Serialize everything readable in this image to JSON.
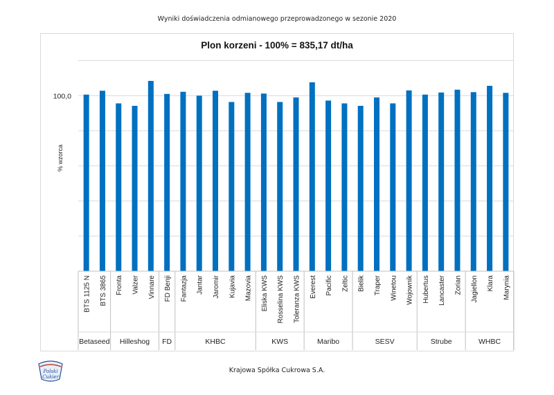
{
  "header": {
    "subtitle": "Wyniki doświadczenia odmianowego przeprowadzonego w sezonie 2020"
  },
  "footer": {
    "company": "Krajowa Spółka Cukrowa S.A."
  },
  "logo": {
    "line1": "Polski",
    "line2": "Cukier"
  },
  "chart_data": {
    "type": "bar",
    "title": "Plon korzeni - 100% = 835,17 dt/ha",
    "ylabel": "% wzorca",
    "yticks": [
      {
        "value": 100,
        "label": "100,0"
      }
    ],
    "ylim": [
      50,
      110.5
    ],
    "grid": true,
    "color": "#0070c0",
    "categories": [
      "BTS 1125 N",
      "BTS 3865",
      "Fronta",
      "Valzer",
      "Vinnare",
      "FD Benji",
      "Fantazja",
      "Jantar",
      "Jaromir",
      "Kujavia",
      "Mazovia",
      "Eliska KWS",
      "Rosselina KWS",
      "Toleranza KWS",
      "Everest",
      "Pacific",
      "Zeltic",
      "Bielik",
      "Traper",
      "Winetou",
      "Wojownik",
      "Hubertus",
      "Lancaster",
      "Zorian",
      "Jagiellon",
      "Klara",
      "Marynia"
    ],
    "values": [
      100.3,
      101.4,
      97.8,
      97.1,
      104.2,
      100.5,
      101.1,
      100.0,
      101.4,
      98.2,
      100.8,
      100.6,
      98.2,
      99.5,
      103.8,
      98.6,
      97.8,
      97.1,
      99.5,
      97.8,
      101.5,
      100.3,
      100.9,
      101.7,
      101.0,
      102.8,
      100.8
    ],
    "groups": [
      {
        "name": "Betaseed",
        "count": 2
      },
      {
        "name": "Hilleshog",
        "count": 3
      },
      {
        "name": "FD",
        "count": 1
      },
      {
        "name": "KHBC",
        "count": 5
      },
      {
        "name": "KWS",
        "count": 3
      },
      {
        "name": "Maribo",
        "count": 3
      },
      {
        "name": "SESV",
        "count": 4
      },
      {
        "name": "Strube",
        "count": 3
      },
      {
        "name": "WHBC",
        "count": 3
      }
    ]
  }
}
